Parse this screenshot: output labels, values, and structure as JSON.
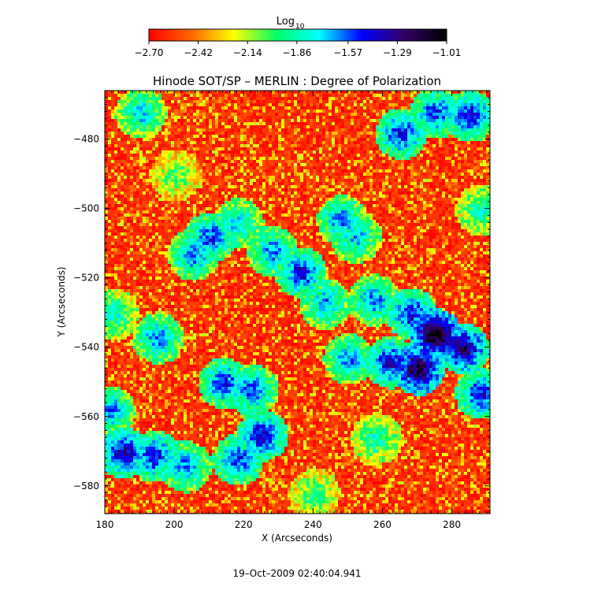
{
  "chart_data": {
    "type": "heatmap",
    "title": "Hinode SOT/SP – MERLIN : Degree of Polarization",
    "xlabel": "X (Arcseconds)",
    "ylabel": "Y (Arcseconds)",
    "xlim": [
      180,
      291
    ],
    "ylim": [
      -588,
      -466
    ],
    "x_ticks": [
      180,
      200,
      220,
      240,
      260,
      280
    ],
    "x_tick_labels": [
      "180",
      "200",
      "220",
      "240",
      "260",
      "280"
    ],
    "y_ticks": [
      -480,
      -500,
      -520,
      -540,
      -560,
      -580
    ],
    "y_tick_labels": [
      "−480",
      "−500",
      "−520",
      "−540",
      "−560",
      "−580"
    ],
    "grid": false,
    "colorbar": {
      "label": "Log",
      "label_subscript": "10",
      "placement": "top",
      "range": [
        -2.7,
        -1.01
      ],
      "ticks": [
        -2.7,
        -2.42,
        -2.14,
        -1.86,
        -1.57,
        -1.29,
        -1.01
      ],
      "tick_labels": [
        "−2.70",
        "−2.42",
        "−2.14",
        "−1.86",
        "−1.57",
        "−1.29",
        "−1.01"
      ],
      "colormap": [
        "#ff0000",
        "#ff6600",
        "#ffff00",
        "#00ff66",
        "#00ffff",
        "#0000ff",
        "#330066",
        "#000000"
      ]
    },
    "features": [
      {
        "x": 275,
        "y": -536,
        "level": -1.05
      },
      {
        "x": 270,
        "y": -546,
        "level": -1.15
      },
      {
        "x": 283,
        "y": -540,
        "level": -1.25
      },
      {
        "x": 262,
        "y": -544,
        "level": -1.4
      },
      {
        "x": 268,
        "y": -530,
        "level": -1.45
      },
      {
        "x": 288,
        "y": -553,
        "level": -1.45
      },
      {
        "x": 257,
        "y": -526,
        "level": -1.6
      },
      {
        "x": 236,
        "y": -518,
        "level": -1.45
      },
      {
        "x": 228,
        "y": -512,
        "level": -1.6
      },
      {
        "x": 210,
        "y": -508,
        "level": -1.5
      },
      {
        "x": 205,
        "y": -513,
        "level": -1.6
      },
      {
        "x": 218,
        "y": -504,
        "level": -1.7
      },
      {
        "x": 214,
        "y": -550,
        "level": -1.5
      },
      {
        "x": 222,
        "y": -552,
        "level": -1.55
      },
      {
        "x": 225,
        "y": -565,
        "level": -1.4
      },
      {
        "x": 218,
        "y": -572,
        "level": -1.5
      },
      {
        "x": 185,
        "y": -570,
        "level": -1.35
      },
      {
        "x": 194,
        "y": -571,
        "level": -1.45
      },
      {
        "x": 203,
        "y": -574,
        "level": -1.6
      },
      {
        "x": 181,
        "y": -558,
        "level": -1.6
      },
      {
        "x": 250,
        "y": -543,
        "level": -1.6
      },
      {
        "x": 265,
        "y": -478,
        "level": -1.45
      },
      {
        "x": 285,
        "y": -473,
        "level": -1.45
      },
      {
        "x": 275,
        "y": -472,
        "level": -1.5
      },
      {
        "x": 190,
        "y": -472,
        "level": -1.7
      },
      {
        "x": 248,
        "y": -503,
        "level": -1.6
      },
      {
        "x": 252,
        "y": -508,
        "level": -1.7
      },
      {
        "x": 195,
        "y": -537,
        "level": -1.6
      },
      {
        "x": 243,
        "y": -527,
        "level": -1.65
      },
      {
        "x": 182,
        "y": -530,
        "level": -1.8
      },
      {
        "x": 288,
        "y": -500,
        "level": -1.85
      },
      {
        "x": 258,
        "y": -566,
        "level": -1.85
      },
      {
        "x": 240,
        "y": -582,
        "level": -1.95
      },
      {
        "x": 200,
        "y": -490,
        "level": -2.0
      }
    ]
  },
  "footer": {
    "timestamp": "19–Oct–2009 02:40:04.941"
  }
}
